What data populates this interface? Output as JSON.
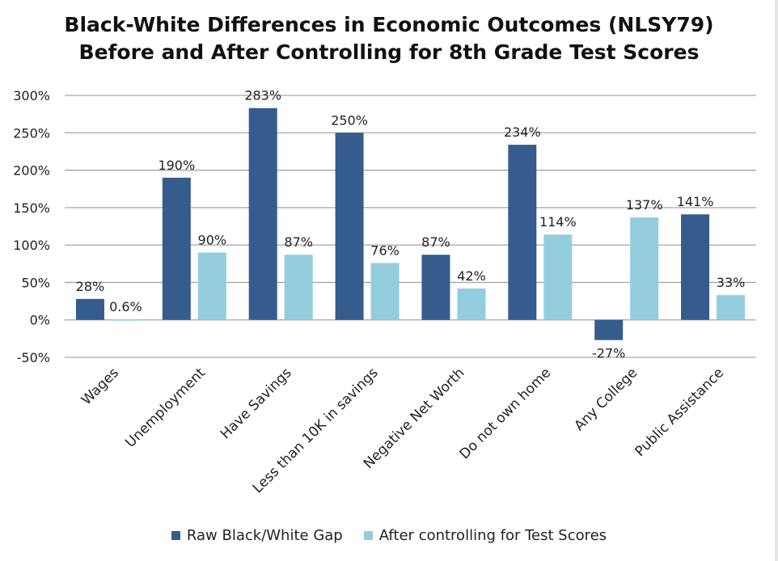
{
  "chart_data": {
    "type": "bar",
    "title": "Black-White Differences in Economic Outcomes (NLSY79)",
    "subtitle": "Before and After Controlling for 8th Grade Test Scores",
    "categories": [
      "Wages",
      "Unemployment",
      "Have Savings",
      "Less than 10K in savings",
      "Negative Net Worth",
      "Do not own home",
      "Any College",
      "Public Assistance"
    ],
    "series": [
      {
        "name": "Raw Black/White Gap",
        "color": "#355c8c",
        "values": [
          28,
          190,
          283,
          250,
          87,
          234,
          -27,
          141
        ],
        "labels": [
          "28%",
          "190%",
          "283%",
          "250%",
          "87%",
          "234%",
          "-27%",
          "141%"
        ]
      },
      {
        "name": "After controlling for Test Scores",
        "color": "#93cddd",
        "values": [
          0.6,
          90,
          87,
          76,
          42,
          114,
          137,
          33
        ],
        "labels": [
          "0.6%",
          "90%",
          "87%",
          "76%",
          "42%",
          "114%",
          "137%",
          "33%"
        ]
      }
    ],
    "yticks": [
      "-50%",
      "0%",
      "50%",
      "100%",
      "150%",
      "200%",
      "250%",
      "300%"
    ],
    "ylim": [
      -50,
      300
    ],
    "grid": true,
    "legend_position": "bottom"
  }
}
